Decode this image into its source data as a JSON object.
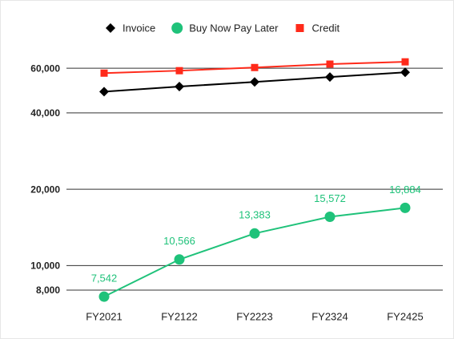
{
  "chart_data": {
    "type": "line",
    "categories": [
      "FY2021",
      "FY2122",
      "FY2223",
      "FY2324",
      "FY2425"
    ],
    "series": [
      {
        "name": "Invoice",
        "color": "#000000",
        "marker": "diamond",
        "values": [
          48500,
          50800,
          53000,
          55400,
          57800
        ]
      },
      {
        "name": "Buy Now Pay Later",
        "color": "#1fc27a",
        "marker": "circle",
        "values": [
          7542,
          10566,
          13383,
          15572,
          16884
        ],
        "value_labels": [
          "7,542",
          "10,566",
          "13,383",
          "15,572",
          "16,884"
        ]
      },
      {
        "name": "Credit",
        "color": "#ff2a1a",
        "marker": "square",
        "values": [
          57400,
          58700,
          60400,
          62300,
          63600
        ]
      }
    ],
    "ylim": [
      8000,
      70000
    ],
    "log_y": true,
    "yticks": [
      {
        "value": 8000,
        "label": "8,000"
      },
      {
        "value": 10000,
        "label": "10,000"
      },
      {
        "value": 20000,
        "label": "20,000"
      },
      {
        "value": 40000,
        "label": "40,000"
      },
      {
        "value": 60000,
        "label": "60,000"
      }
    ],
    "grid": true,
    "legend": "top"
  }
}
